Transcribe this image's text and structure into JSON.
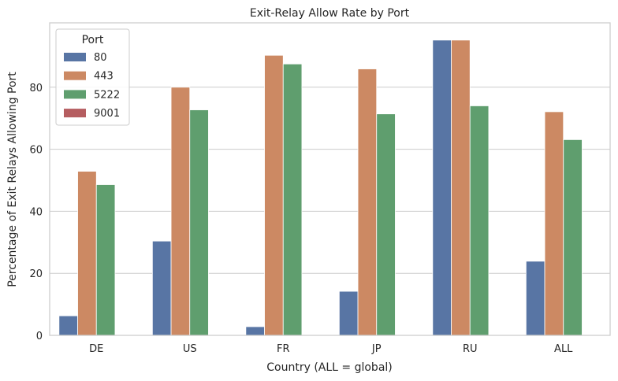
{
  "chart_data": {
    "type": "bar",
    "title": "Exit-Relay Allow Rate by Port",
    "xlabel": "Country (ALL = global)",
    "ylabel": "Percentage of Exit Relays Allowing Port",
    "categories": [
      "DE",
      "US",
      "FR",
      "JP",
      "RU",
      "ALL"
    ],
    "ylim": [
      0,
      100
    ],
    "yticks": [
      0,
      20,
      40,
      60,
      80
    ],
    "grid": "horizontal",
    "legend": {
      "title": "Port",
      "placement": "top-left"
    },
    "series": [
      {
        "name": "80",
        "color": "#5875a4",
        "values": [
          6.3,
          30.4,
          2.8,
          14.2,
          95.2,
          23.9
        ]
      },
      {
        "name": "443",
        "color": "#cc8963",
        "values": [
          52.9,
          80.0,
          90.3,
          85.9,
          95.2,
          72.1
        ]
      },
      {
        "name": "5222",
        "color": "#5f9e6e",
        "values": [
          48.6,
          72.7,
          87.5,
          71.4,
          74.0,
          63.1
        ]
      },
      {
        "name": "9001",
        "color": "#b55d60",
        "values": [
          0,
          0,
          0,
          0,
          0,
          0
        ]
      }
    ]
  }
}
